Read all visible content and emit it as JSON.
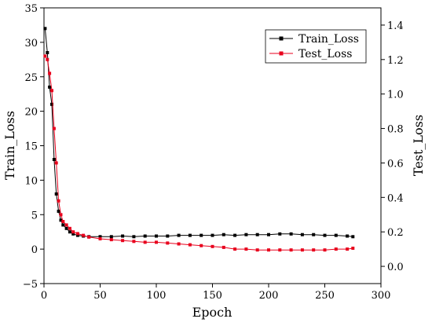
{
  "chart_data": {
    "type": "line",
    "xlabel": "Epoch",
    "ylabel_left": "Train_Loss",
    "ylabel_right": "Test_Loss",
    "xlim": [
      0,
      300
    ],
    "ylim_left": [
      -5,
      35
    ],
    "ylim_right": [
      -0.1,
      1.5
    ],
    "x_ticks": [
      "0",
      "50",
      "100",
      "150",
      "200",
      "250",
      "300"
    ],
    "y_left_ticks": [
      "−5",
      "0",
      "5",
      "10",
      "15",
      "20",
      "25",
      "30",
      "35"
    ],
    "y_right_ticks": [
      "0.0",
      "0.2",
      "0.4",
      "0.6",
      "0.8",
      "1.0",
      "1.2",
      "1.4"
    ],
    "legend_position": "top-right",
    "grid": false,
    "series": [
      {
        "name": "Train_Loss",
        "axis": "left",
        "color": "#000000",
        "marker": "square",
        "x": [
          1,
          3,
          5,
          7,
          9,
          11,
          13,
          15,
          17,
          20,
          23,
          26,
          30,
          35,
          40,
          50,
          60,
          70,
          80,
          90,
          100,
          110,
          120,
          130,
          140,
          150,
          160,
          170,
          180,
          190,
          200,
          210,
          220,
          230,
          240,
          250,
          260,
          270,
          275
        ],
        "y": [
          32,
          28.5,
          23.5,
          21,
          13,
          8,
          5.5,
          4.2,
          3.5,
          3.0,
          2.5,
          2.2,
          2.0,
          1.9,
          1.8,
          1.8,
          1.8,
          1.9,
          1.8,
          1.9,
          1.9,
          1.9,
          2.0,
          2.0,
          2.0,
          2.0,
          2.1,
          2.0,
          2.1,
          2.1,
          2.1,
          2.2,
          2.2,
          2.1,
          2.1,
          2.0,
          2.0,
          1.9,
          1.8
        ]
      },
      {
        "name": "Test_Loss",
        "axis": "right",
        "color": "#e8001c",
        "marker": "square",
        "x": [
          1,
          3,
          5,
          7,
          9,
          11,
          13,
          15,
          17,
          20,
          23,
          26,
          30,
          35,
          40,
          50,
          60,
          70,
          80,
          90,
          100,
          110,
          120,
          130,
          140,
          150,
          160,
          170,
          180,
          190,
          200,
          210,
          220,
          230,
          240,
          250,
          260,
          270,
          275
        ],
        "y": [
          1.22,
          1.2,
          1.12,
          1.02,
          0.8,
          0.6,
          0.38,
          0.3,
          0.26,
          0.24,
          0.22,
          0.2,
          0.19,
          0.18,
          0.17,
          0.16,
          0.155,
          0.15,
          0.145,
          0.14,
          0.14,
          0.135,
          0.13,
          0.125,
          0.12,
          0.115,
          0.11,
          0.1,
          0.1,
          0.095,
          0.095,
          0.095,
          0.095,
          0.095,
          0.095,
          0.095,
          0.1,
          0.1,
          0.105
        ]
      }
    ]
  }
}
